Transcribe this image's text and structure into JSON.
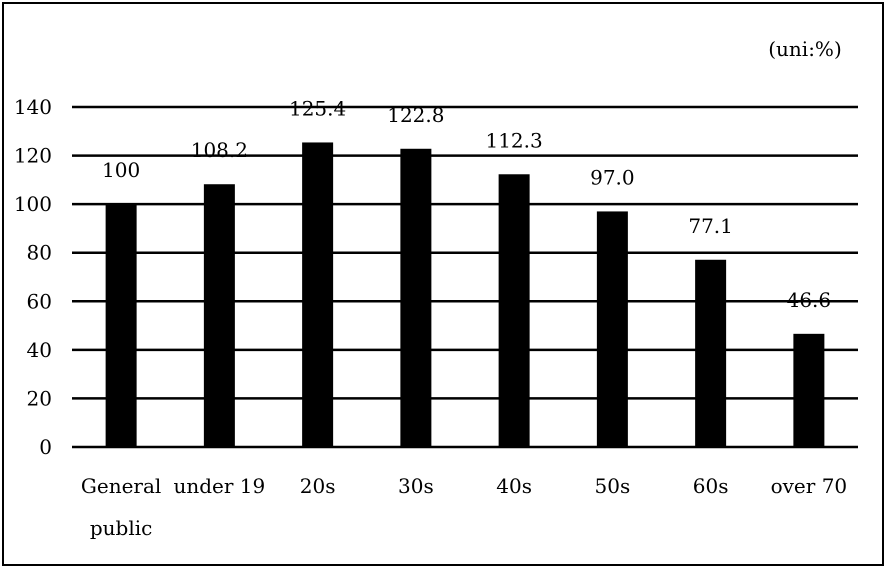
{
  "chart_data": {
    "type": "bar",
    "unit_note": "(uni:%)",
    "categories": [
      [
        "General",
        "public"
      ],
      [
        "under 19"
      ],
      [
        "20s"
      ],
      [
        "30s"
      ],
      [
        "40s"
      ],
      [
        "50s"
      ],
      [
        "60s"
      ],
      [
        "over 70"
      ]
    ],
    "values": [
      100,
      108.2,
      125.4,
      122.8,
      112.3,
      97.0,
      77.1,
      46.6
    ],
    "value_labels": [
      "100",
      "108.2",
      "125.4",
      "122.8",
      "112.3",
      "97.0",
      "77.1",
      "46.6"
    ],
    "y_ticks": [
      "0",
      "20",
      "40",
      "60",
      "80",
      "100",
      "120",
      "140"
    ],
    "ylim": [
      0,
      140
    ],
    "grid": true,
    "bar_color": "#000000",
    "grid_color": "#000000"
  }
}
